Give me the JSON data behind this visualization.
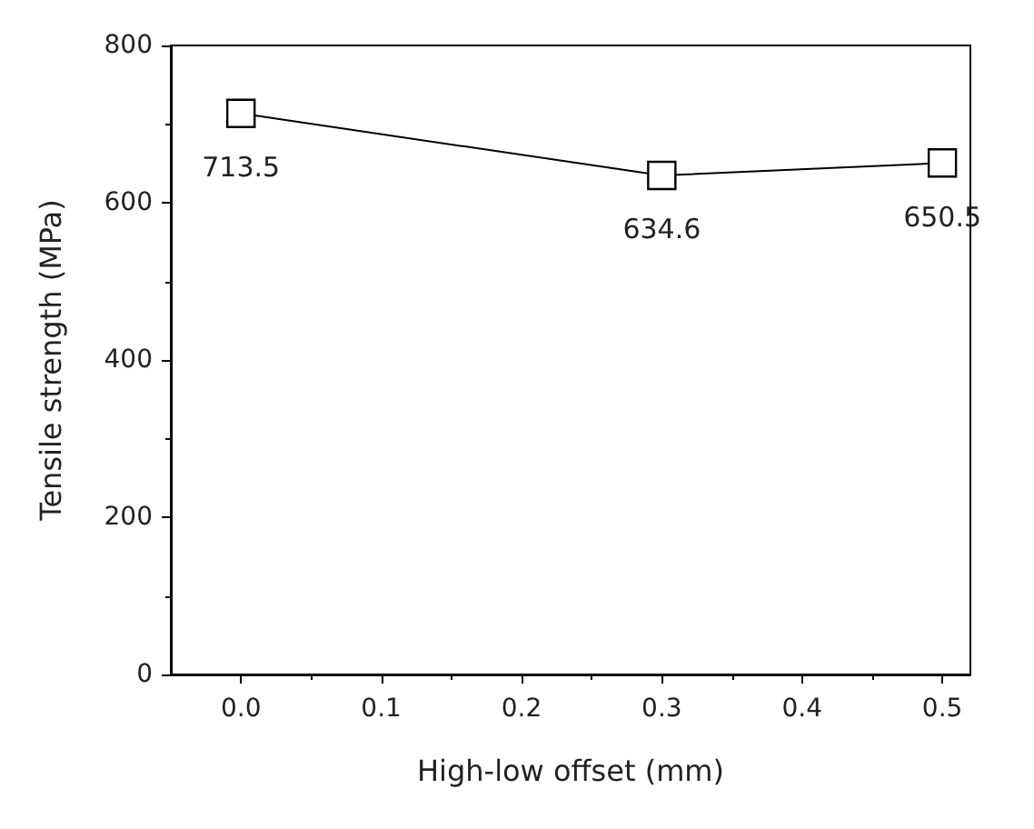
{
  "chart_data": {
    "type": "line",
    "xlabel": "High-low offset (mm)",
    "ylabel": "Tensile strength (MPa)",
    "x": [
      0.0,
      0.3,
      0.5
    ],
    "series": [
      {
        "color": "#000000",
        "values": [
          713.5,
          634.6,
          650.5
        ]
      }
    ],
    "xlim": [
      -0.05,
      0.52
    ],
    "xticks": [
      {
        "value": 0,
        "label": "0.0"
      },
      0.1,
      0.2,
      0.3,
      0.4,
      0.5
    ],
    "ylim": [
      0,
      800
    ],
    "yticks": [
      0,
      200,
      400,
      600,
      800
    ],
    "marker": "square",
    "line_style": "solid",
    "data_labels": true,
    "grid": false
  }
}
